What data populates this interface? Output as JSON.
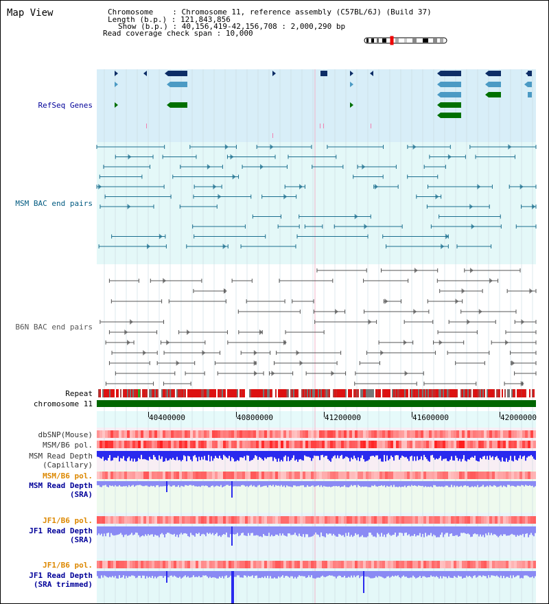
{
  "header": {
    "title": "Map View",
    "chromosome_label": "Chromosome",
    "chromosome_value": "Chromosome 11, reference assembly (C57BL/6J) (Build 37)",
    "length_label": "Length (b.p.)",
    "length_value": "121,843,856",
    "show_label": "Show (b.p.)",
    "show_value": "40,156,419-42,156,708 : 2,000,290 bp",
    "coverage_label": "Read coverage check span",
    "coverage_value": "10,000"
  },
  "tracks": {
    "refseq": "RefSeq Genes",
    "msm_bac": "MSM BAC end pairs",
    "b6n_bac": "B6N BAC end pairs",
    "repeat": "Repeat",
    "chromosome": "chromosome 11",
    "dbsnp": "dbSNP(Mouse)",
    "msm_b6_pol": "MSM/B6 pol.",
    "msm_depth_cap_1": "MSM Read Depth",
    "msm_depth_cap_2": "(Capillary)",
    "msm_b6_pol2": "MSM/B6 pol.",
    "msm_depth_sra_1": "MSM Read Depth",
    "msm_depth_sra_2": "(SRA)",
    "jf1_b6_pol": "JF1/B6 pol.",
    "jf1_depth_sra_1": "JF1 Read Depth",
    "jf1_depth_sra_2": "(SRA)",
    "jf1_b6_pol2": "JF1/B6 pol.",
    "jf1_depth_trim_1": "JF1 Read Depth",
    "jf1_depth_trim_2": "(SRA trimmed)"
  },
  "axis": {
    "ticks": [
      "40400000",
      "40800000",
      "41200000",
      "41600000",
      "42000000"
    ]
  },
  "colors": {
    "refseq_bg": "#d8eef8",
    "msm_bg": "#e4f8f8",
    "gene_dark": "#0d2d66",
    "gene_light": "#4b9ac4",
    "gene_green": "#007000",
    "msm_line": "#1a6e8e",
    "b6n_line": "#555555",
    "chrom_green": "#006600",
    "depth_blue": "#2a2aee",
    "depth_lightblue": "#8a8af4",
    "label_blue": "#000099",
    "label_teal": "#005a80",
    "label_gray": "#555555",
    "label_orange": "#dd8800"
  }
}
